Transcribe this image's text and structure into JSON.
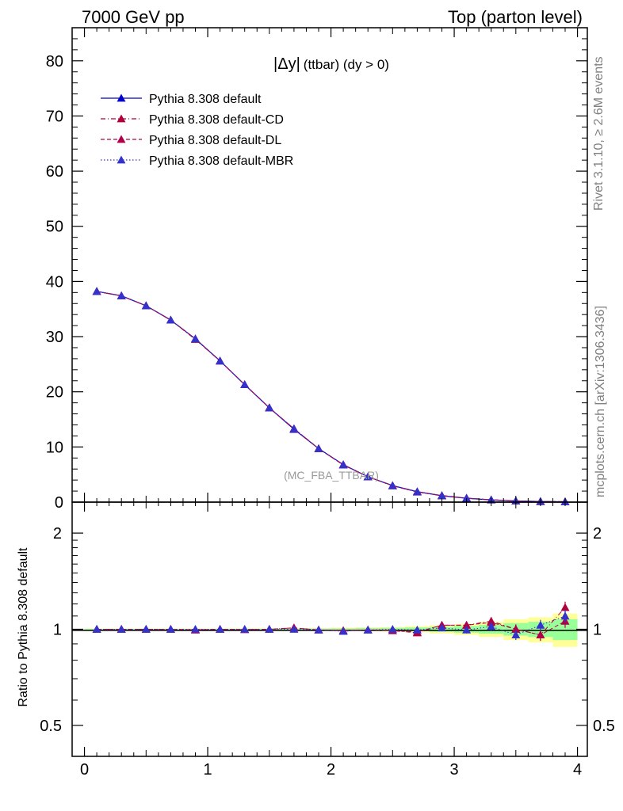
{
  "header": {
    "left": "7000 GeV pp",
    "right": "Top (parton level)"
  },
  "side_labels": {
    "rivet": "Rivet 3.1.10, ≥ 2.6M events",
    "mcplots": "mcplots.cern.ch [arXiv:1306.3436]"
  },
  "main_plot": {
    "title_symbol": "|Δy|",
    "title_rest": "(ttbar) (dy > 0)",
    "watermark": "(MC_FBA_TTBAR)",
    "y_ticks": [
      "0",
      "10",
      "20",
      "30",
      "40",
      "50",
      "60",
      "70",
      "80"
    ]
  },
  "ratio_plot": {
    "ylabel": "Ratio to Pythia 8.308 default",
    "y_ticks": [
      "0.5",
      "1",
      "2"
    ]
  },
  "x_ticks": [
    "0",
    "1",
    "2",
    "3",
    "4"
  ],
  "colors": {
    "default": "#0000cc",
    "cd": "#b0003a",
    "dl": "#b0004a",
    "mbr": "#3333cc",
    "band_yellow": "#ffff99",
    "band_green": "#99ff99"
  },
  "chart_data": [
    {
      "type": "line",
      "xlim": [
        -0.1,
        4.08
      ],
      "ylim": [
        0,
        86
      ],
      "x": [
        0.1,
        0.3,
        0.5,
        0.7,
        0.9,
        1.1,
        1.3,
        1.5,
        1.7,
        1.9,
        2.1,
        2.3,
        2.5,
        2.7,
        2.9,
        3.1,
        3.3,
        3.5,
        3.7,
        3.9
      ],
      "series": [
        {
          "name": "Pythia 8.308 default",
          "style": "solid",
          "values": [
            38.2,
            37.4,
            35.6,
            33.0,
            29.6,
            25.6,
            21.3,
            17.1,
            13.2,
            9.7,
            6.8,
            4.6,
            3.0,
            1.9,
            1.15,
            0.7,
            0.4,
            0.22,
            0.12,
            0.06
          ]
        },
        {
          "name": "Pythia 8.308 default-CD",
          "style": "dashdot",
          "values": [
            38.2,
            37.4,
            35.6,
            33.0,
            29.5,
            25.6,
            21.3,
            17.1,
            13.3,
            9.7,
            6.75,
            4.62,
            2.98,
            1.86,
            1.18,
            0.72,
            0.42,
            0.22,
            0.115,
            0.07
          ]
        },
        {
          "name": "Pythia 8.308 default-DL",
          "style": "dashed",
          "values": [
            38.2,
            37.4,
            35.6,
            33.0,
            29.6,
            25.6,
            21.3,
            17.1,
            13.3,
            9.7,
            6.75,
            4.6,
            2.97,
            1.84,
            1.19,
            0.72,
            0.42,
            0.22,
            0.12,
            0.069
          ]
        },
        {
          "name": "Pythia 8.308 default-MBR",
          "style": "dotted",
          "values": [
            38.2,
            37.4,
            35.6,
            33.0,
            29.6,
            25.6,
            21.3,
            17.1,
            13.3,
            9.7,
            6.75,
            4.6,
            2.98,
            1.86,
            1.17,
            0.7,
            0.41,
            0.21,
            0.124,
            0.066
          ]
        }
      ]
    },
    {
      "type": "line",
      "ylabel": "Ratio to Pythia 8.308 default",
      "yscale": "log",
      "ylim": [
        0.4,
        2.5
      ],
      "x": [
        0.1,
        0.3,
        0.5,
        0.7,
        0.9,
        1.1,
        1.3,
        1.5,
        1.7,
        1.9,
        2.1,
        2.3,
        2.5,
        2.7,
        2.9,
        3.1,
        3.3,
        3.5,
        3.7,
        3.9
      ],
      "band_yellow": [
        0.005,
        0.005,
        0.005,
        0.005,
        0.005,
        0.005,
        0.006,
        0.006,
        0.007,
        0.008,
        0.01,
        0.013,
        0.016,
        0.022,
        0.03,
        0.04,
        0.055,
        0.075,
        0.09,
        0.12
      ],
      "band_green": [
        0.003,
        0.003,
        0.003,
        0.003,
        0.003,
        0.003,
        0.003,
        0.003,
        0.004,
        0.005,
        0.006,
        0.008,
        0.01,
        0.013,
        0.018,
        0.024,
        0.032,
        0.045,
        0.055,
        0.075
      ],
      "series": [
        {
          "name": "Pythia 8.308 default-CD",
          "values": [
            1.0,
            1.0,
            1.0,
            1.0,
            0.995,
            1.0,
            0.998,
            1.0,
            1.01,
            0.995,
            0.99,
            0.995,
            0.99,
            0.975,
            1.03,
            1.03,
            1.06,
            1.0,
            0.96,
            1.17
          ],
          "errors": [
            0.004,
            0.004,
            0.004,
            0.004,
            0.004,
            0.004,
            0.004,
            0.005,
            0.006,
            0.007,
            0.008,
            0.01,
            0.012,
            0.015,
            0.02,
            0.025,
            0.03,
            0.035,
            0.04,
            0.05
          ]
        },
        {
          "name": "Pythia 8.308 default-DL",
          "values": [
            1.0,
            1.0,
            1.0,
            1.0,
            0.995,
            1.0,
            0.998,
            1.0,
            1.01,
            0.995,
            0.99,
            0.995,
            0.99,
            0.98,
            1.03,
            1.03,
            1.05,
            1.0,
            0.96,
            1.06
          ],
          "errors": [
            0.004,
            0.004,
            0.004,
            0.004,
            0.004,
            0.004,
            0.004,
            0.005,
            0.006,
            0.007,
            0.008,
            0.01,
            0.012,
            0.015,
            0.02,
            0.025,
            0.03,
            0.035,
            0.04,
            0.05
          ]
        },
        {
          "name": "Pythia 8.308 default-MBR",
          "values": [
            1.0,
            1.0,
            1.0,
            1.0,
            1.0,
            1.0,
            1.0,
            1.0,
            1.0,
            0.995,
            0.985,
            0.995,
            1.0,
            0.995,
            1.01,
            0.995,
            1.02,
            0.96,
            1.03,
            1.1
          ],
          "errors": [
            0.004,
            0.004,
            0.004,
            0.004,
            0.004,
            0.004,
            0.004,
            0.005,
            0.006,
            0.007,
            0.008,
            0.01,
            0.012,
            0.015,
            0.02,
            0.025,
            0.03,
            0.035,
            0.04,
            0.05
          ]
        }
      ]
    }
  ]
}
